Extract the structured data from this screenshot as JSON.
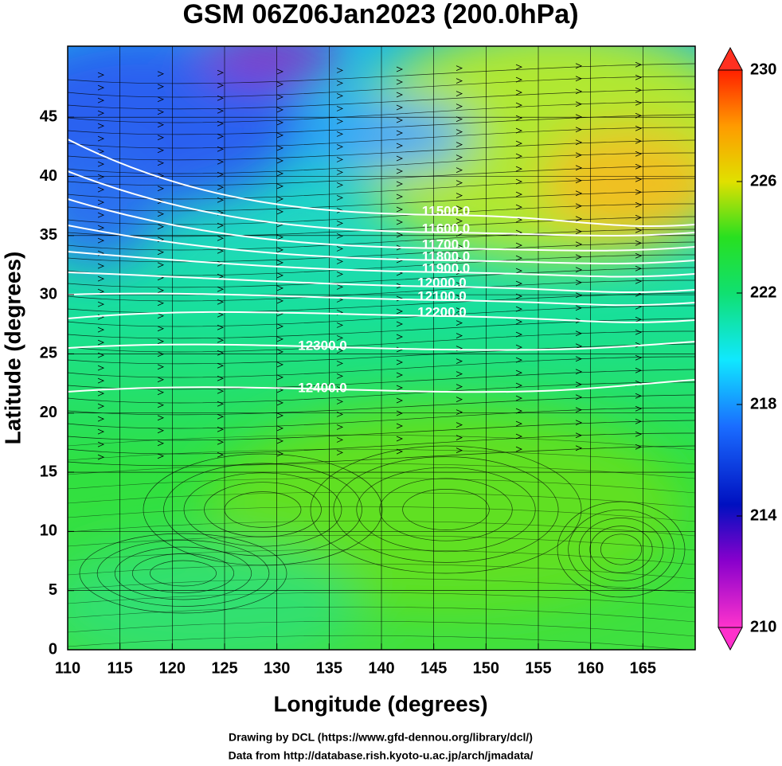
{
  "title": "GSM 06Z06Jan2023 (200.0hPa)",
  "map": {
    "xlabel": "Longitude (degrees)",
    "ylabel": "Latitude  (degrees)",
    "xlim": [
      110,
      170
    ],
    "ylim": [
      0,
      51
    ],
    "xticks": [
      110,
      115,
      120,
      125,
      130,
      135,
      140,
      145,
      150,
      155,
      160,
      165
    ],
    "yticks": [
      0,
      5,
      10,
      15,
      20,
      25,
      30,
      35,
      40,
      45
    ],
    "contours": [
      {
        "value": 11500,
        "label": "11500.0"
      },
      {
        "value": 11600,
        "label": "11600.0"
      },
      {
        "value": 11700,
        "label": "11700.0"
      },
      {
        "value": 11800,
        "label": "11800.0"
      },
      {
        "value": 11900,
        "label": "11900.0"
      },
      {
        "value": 12000,
        "label": "12000.0"
      },
      {
        "value": 12100,
        "label": "12100.0"
      },
      {
        "value": 12200,
        "label": "12200.0"
      },
      {
        "value": 12300,
        "label": "12300.0"
      },
      {
        "value": 12400,
        "label": "12400.0"
      }
    ]
  },
  "colorbar": {
    "lim": [
      210,
      230
    ],
    "ticks": [
      210,
      214,
      218,
      222,
      226,
      230
    ]
  },
  "footer": [
    "Drawing by DCL (https://www.gfd-dennou.org/library/dcl/)",
    "Data from http://database.rish.kyoto-u.ac.jp/arch/jmadata/"
  ]
}
